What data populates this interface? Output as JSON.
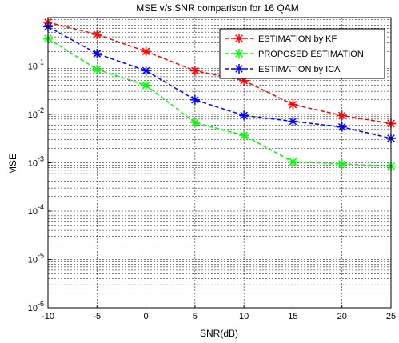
{
  "chart_data": {
    "type": "line",
    "title": "MSE v/s SNR comparison for 16 QAM",
    "xlabel": "SNR(dB)",
    "ylabel": "MSE",
    "x": [
      -10,
      -5,
      0,
      5,
      10,
      15,
      20,
      25
    ],
    "xlim": [
      -10,
      25
    ],
    "ylim": [
      1e-06,
      1
    ],
    "yscale": "log",
    "grid": true,
    "legend_position": "top-right",
    "x_ticks": [
      "-10",
      "-5",
      "0",
      "5",
      "10",
      "15",
      "20",
      "25"
    ],
    "y_ticks": [
      {
        "value": 1e-06,
        "base": "10",
        "exp": "-6"
      },
      {
        "value": 1e-05,
        "base": "10",
        "exp": "-5"
      },
      {
        "value": 0.0001,
        "base": "10",
        "exp": "-4"
      },
      {
        "value": 0.001,
        "base": "10",
        "exp": "-3"
      },
      {
        "value": 0.01,
        "base": "10",
        "exp": "-2"
      },
      {
        "value": 0.1,
        "base": "10",
        "exp": "-1"
      }
    ],
    "series": [
      {
        "name": "ESTIMATION by KF",
        "color": "#ff0000",
        "values": [
          0.8,
          0.45,
          0.2,
          0.08,
          0.05,
          0.016,
          0.0095,
          0.0065
        ]
      },
      {
        "name": "PROPOSED ESTIMATION",
        "color": "#00ff00",
        "values": [
          0.37,
          0.085,
          0.04,
          0.0068,
          0.0037,
          0.00105,
          0.00095,
          0.00085
        ]
      },
      {
        "name": "ESTIMATION by ICA",
        "color": "#0000ff",
        "values": [
          0.65,
          0.18,
          0.08,
          0.02,
          0.0095,
          0.0072,
          0.0055,
          0.0032
        ]
      }
    ]
  }
}
